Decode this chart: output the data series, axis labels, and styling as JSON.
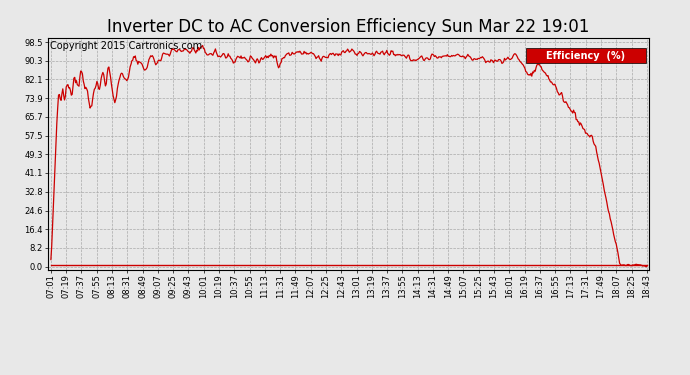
{
  "title": "Inverter DC to AC Conversion Efficiency Sun Mar 22 19:01",
  "copyright": "Copyright 2015 Cartronics.com",
  "legend_label": "Efficiency  (%)",
  "legend_bg": "#cc0000",
  "legend_fg": "#ffffff",
  "line_color": "#cc0000",
  "bg_color": "#e8e8e8",
  "plot_bg_color": "#e8e8e8",
  "grid_color": "#aaaaaa",
  "yticks": [
    0.0,
    8.2,
    16.4,
    24.6,
    32.8,
    41.1,
    49.3,
    57.5,
    65.7,
    73.9,
    82.1,
    90.3,
    98.5
  ],
  "xticklabels": [
    "07:01",
    "07:19",
    "07:37",
    "07:55",
    "08:13",
    "08:31",
    "08:49",
    "09:07",
    "09:25",
    "09:43",
    "10:01",
    "10:19",
    "10:37",
    "10:55",
    "11:13",
    "11:31",
    "11:49",
    "12:07",
    "12:25",
    "12:43",
    "13:01",
    "13:19",
    "13:37",
    "13:55",
    "14:13",
    "14:31",
    "14:49",
    "15:07",
    "15:25",
    "15:43",
    "16:01",
    "16:19",
    "16:37",
    "16:55",
    "17:13",
    "17:31",
    "17:49",
    "18:07",
    "18:25",
    "18:43"
  ],
  "ymin": -1.5,
  "ymax": 100.5,
  "title_fontsize": 12,
  "copyright_fontsize": 7,
  "tick_fontsize": 6,
  "line_width": 0.9
}
